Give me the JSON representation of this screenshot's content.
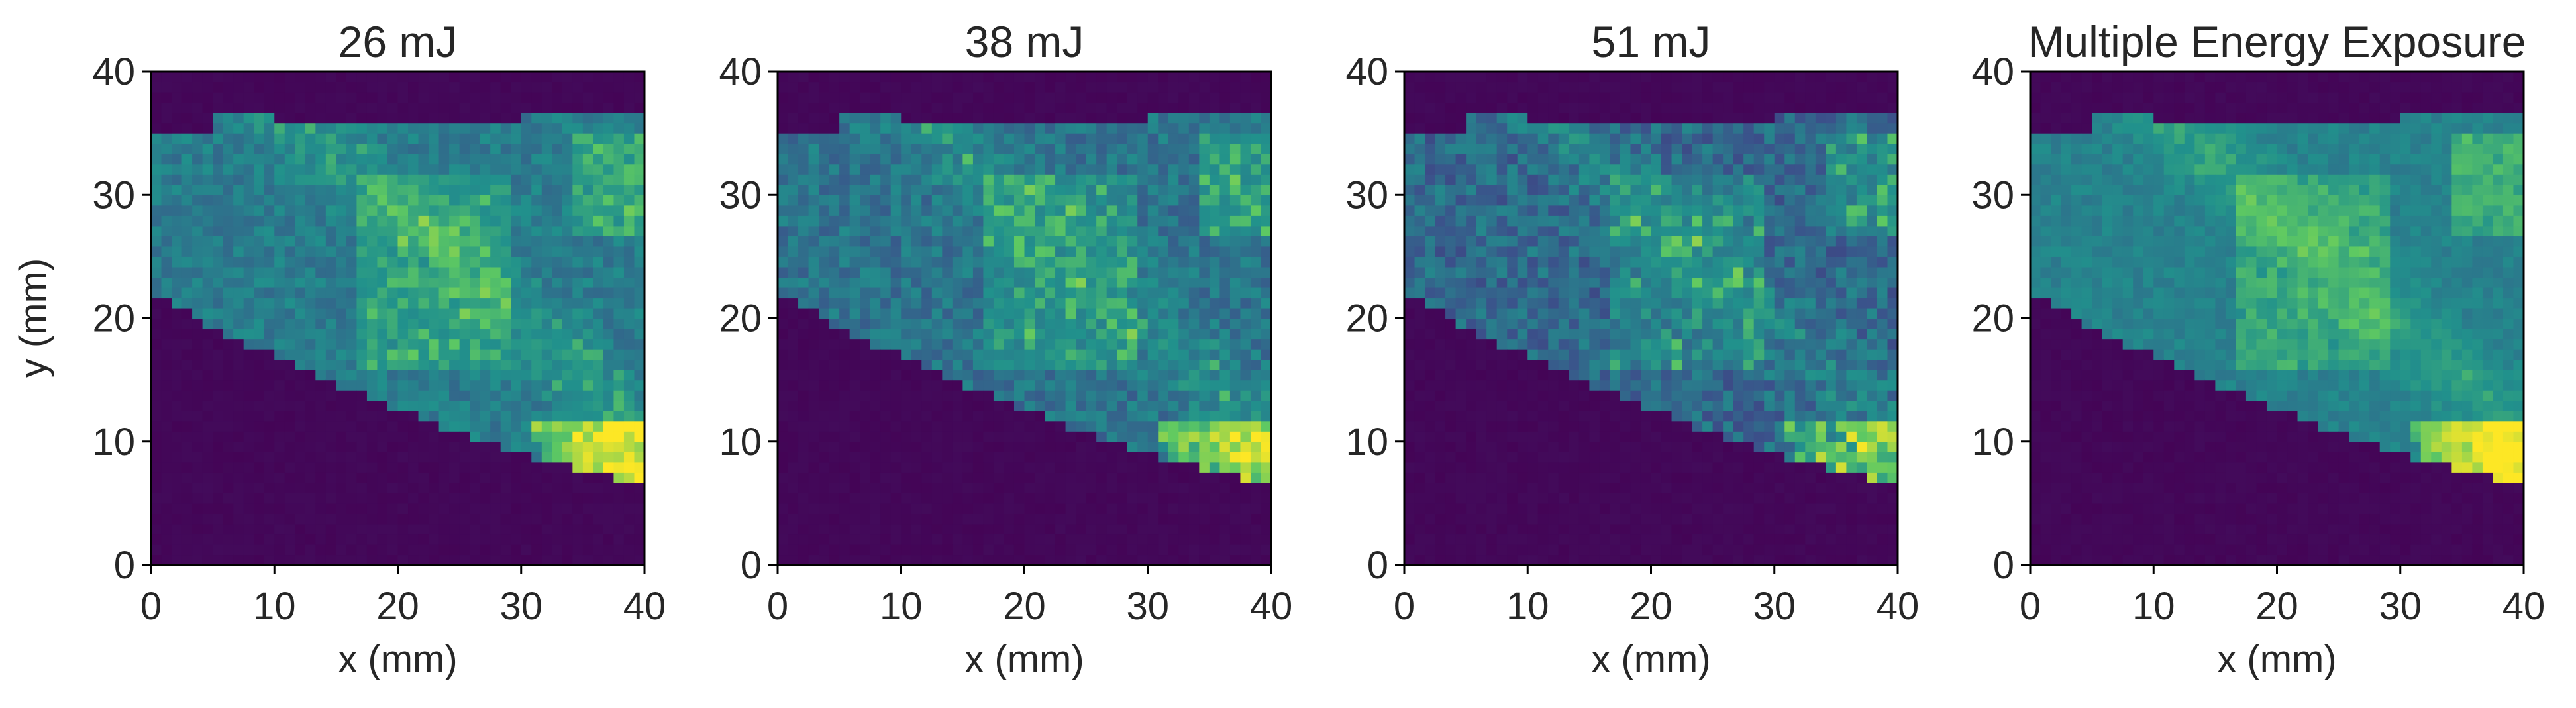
{
  "figure": {
    "colormap": "viridis",
    "colormap_stops": [
      "#440154",
      "#3b528b",
      "#21918c",
      "#5ec962",
      "#fde725"
    ],
    "background": "#ffffff",
    "shared_ylabel": "y (mm)"
  },
  "chart_data": [
    {
      "type": "heatmap",
      "title": "26 mJ",
      "xlabel": "x (mm)",
      "ylabel": "y (mm)",
      "xlim": [
        0,
        40
      ],
      "ylim": [
        0,
        40
      ],
      "xticks": [
        "0",
        "10",
        "20",
        "30",
        "40"
      ],
      "yticks": [
        "0",
        "10",
        "20",
        "30",
        "40"
      ],
      "grid_cells": 48,
      "intensity_scale": 1.0,
      "noise": 0.08
    },
    {
      "type": "heatmap",
      "title": "38 mJ",
      "xlabel": "x (mm)",
      "ylabel": "",
      "xlim": [
        0,
        40
      ],
      "ylim": [
        0,
        40
      ],
      "xticks": [
        "0",
        "10",
        "20",
        "30",
        "40"
      ],
      "yticks": [
        "0",
        "10",
        "20",
        "30",
        "40"
      ],
      "grid_cells": 48,
      "intensity_scale": 0.92,
      "noise": 0.1
    },
    {
      "type": "heatmap",
      "title": "51 mJ",
      "xlabel": "x (mm)",
      "ylabel": "",
      "xlim": [
        0,
        40
      ],
      "ylim": [
        0,
        40
      ],
      "xticks": [
        "0",
        "10",
        "20",
        "30",
        "40"
      ],
      "yticks": [
        "0",
        "10",
        "20",
        "30",
        "40"
      ],
      "grid_cells": 48,
      "intensity_scale": 0.82,
      "noise": 0.12
    },
    {
      "type": "heatmap",
      "title": "Multiple Energy Exposure",
      "xlabel": "x (mm)",
      "ylabel": "",
      "xlim": [
        0,
        40
      ],
      "ylim": [
        0,
        40
      ],
      "xticks": [
        "0",
        "10",
        "20",
        "30",
        "40"
      ],
      "yticks": [
        "0",
        "10",
        "20",
        "30",
        "40"
      ],
      "grid_cells": 48,
      "intensity_scale": 1.05,
      "noise": 0.05
    }
  ]
}
